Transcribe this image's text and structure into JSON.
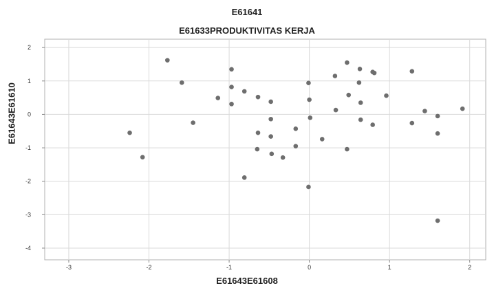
{
  "chart_data": {
    "type": "scatter",
    "title": "E61641",
    "subtitle": "E61633PRODUKTIVITAS KERJA",
    "xlabel": "E61643E61608",
    "ylabel": "E61643E61610",
    "xlim": [
      -3.3,
      2.2
    ],
    "ylim": [
      -4.35,
      2.25
    ],
    "xticks": [
      "-3",
      "-2",
      "-1",
      "0",
      "1",
      "2"
    ],
    "yticks": [
      "2",
      "1",
      "0",
      "-1",
      "-2",
      "-3",
      "-4"
    ],
    "xtick_values": [
      -3,
      -2,
      -1,
      0,
      1,
      2
    ],
    "ytick_values": [
      2,
      1,
      0,
      -1,
      -2,
      -3,
      -4
    ],
    "grid": true,
    "point_color": "#6e6e6e",
    "gridline_color": "#d9d9d9",
    "points": [
      {
        "x": -2.24,
        "y": -0.55
      },
      {
        "x": -2.08,
        "y": -1.28
      },
      {
        "x": -1.77,
        "y": 1.62
      },
      {
        "x": -1.59,
        "y": 0.95
      },
      {
        "x": -1.45,
        "y": -0.25
      },
      {
        "x": -1.14,
        "y": 0.49
      },
      {
        "x": -0.97,
        "y": 1.35
      },
      {
        "x": -0.97,
        "y": 0.82
      },
      {
        "x": -0.97,
        "y": 0.31
      },
      {
        "x": -0.81,
        "y": 0.69
      },
      {
        "x": -0.81,
        "y": -1.89
      },
      {
        "x": -0.64,
        "y": 0.52
      },
      {
        "x": -0.64,
        "y": -0.55
      },
      {
        "x": -0.65,
        "y": -1.04
      },
      {
        "x": -0.48,
        "y": 0.38
      },
      {
        "x": -0.48,
        "y": -0.14
      },
      {
        "x": -0.48,
        "y": -0.66
      },
      {
        "x": -0.47,
        "y": -1.18
      },
      {
        "x": -0.33,
        "y": -1.29
      },
      {
        "x": -0.17,
        "y": -0.43
      },
      {
        "x": -0.17,
        "y": -0.95
      },
      {
        "x": -0.01,
        "y": 0.94
      },
      {
        "x": 0.0,
        "y": 0.44
      },
      {
        "x": 0.01,
        "y": -0.1
      },
      {
        "x": -0.01,
        "y": -2.17
      },
      {
        "x": 0.16,
        "y": -0.74
      },
      {
        "x": 0.32,
        "y": 1.15
      },
      {
        "x": 0.33,
        "y": 0.13
      },
      {
        "x": 0.47,
        "y": 1.55
      },
      {
        "x": 0.49,
        "y": 0.58
      },
      {
        "x": 0.47,
        "y": -1.04
      },
      {
        "x": 0.62,
        "y": 0.95
      },
      {
        "x": 0.63,
        "y": 1.36
      },
      {
        "x": 0.64,
        "y": 0.35
      },
      {
        "x": 0.64,
        "y": -0.16
      },
      {
        "x": 0.79,
        "y": 1.27
      },
      {
        "x": 0.81,
        "y": 1.24
      },
      {
        "x": 0.79,
        "y": -0.31
      },
      {
        "x": 0.96,
        "y": 0.56
      },
      {
        "x": 1.28,
        "y": 1.29
      },
      {
        "x": 1.28,
        "y": -0.26
      },
      {
        "x": 1.44,
        "y": 0.1
      },
      {
        "x": 1.6,
        "y": -0.05
      },
      {
        "x": 1.6,
        "y": -0.57
      },
      {
        "x": 1.6,
        "y": -3.18
      },
      {
        "x": 1.91,
        "y": 0.17
      }
    ]
  }
}
